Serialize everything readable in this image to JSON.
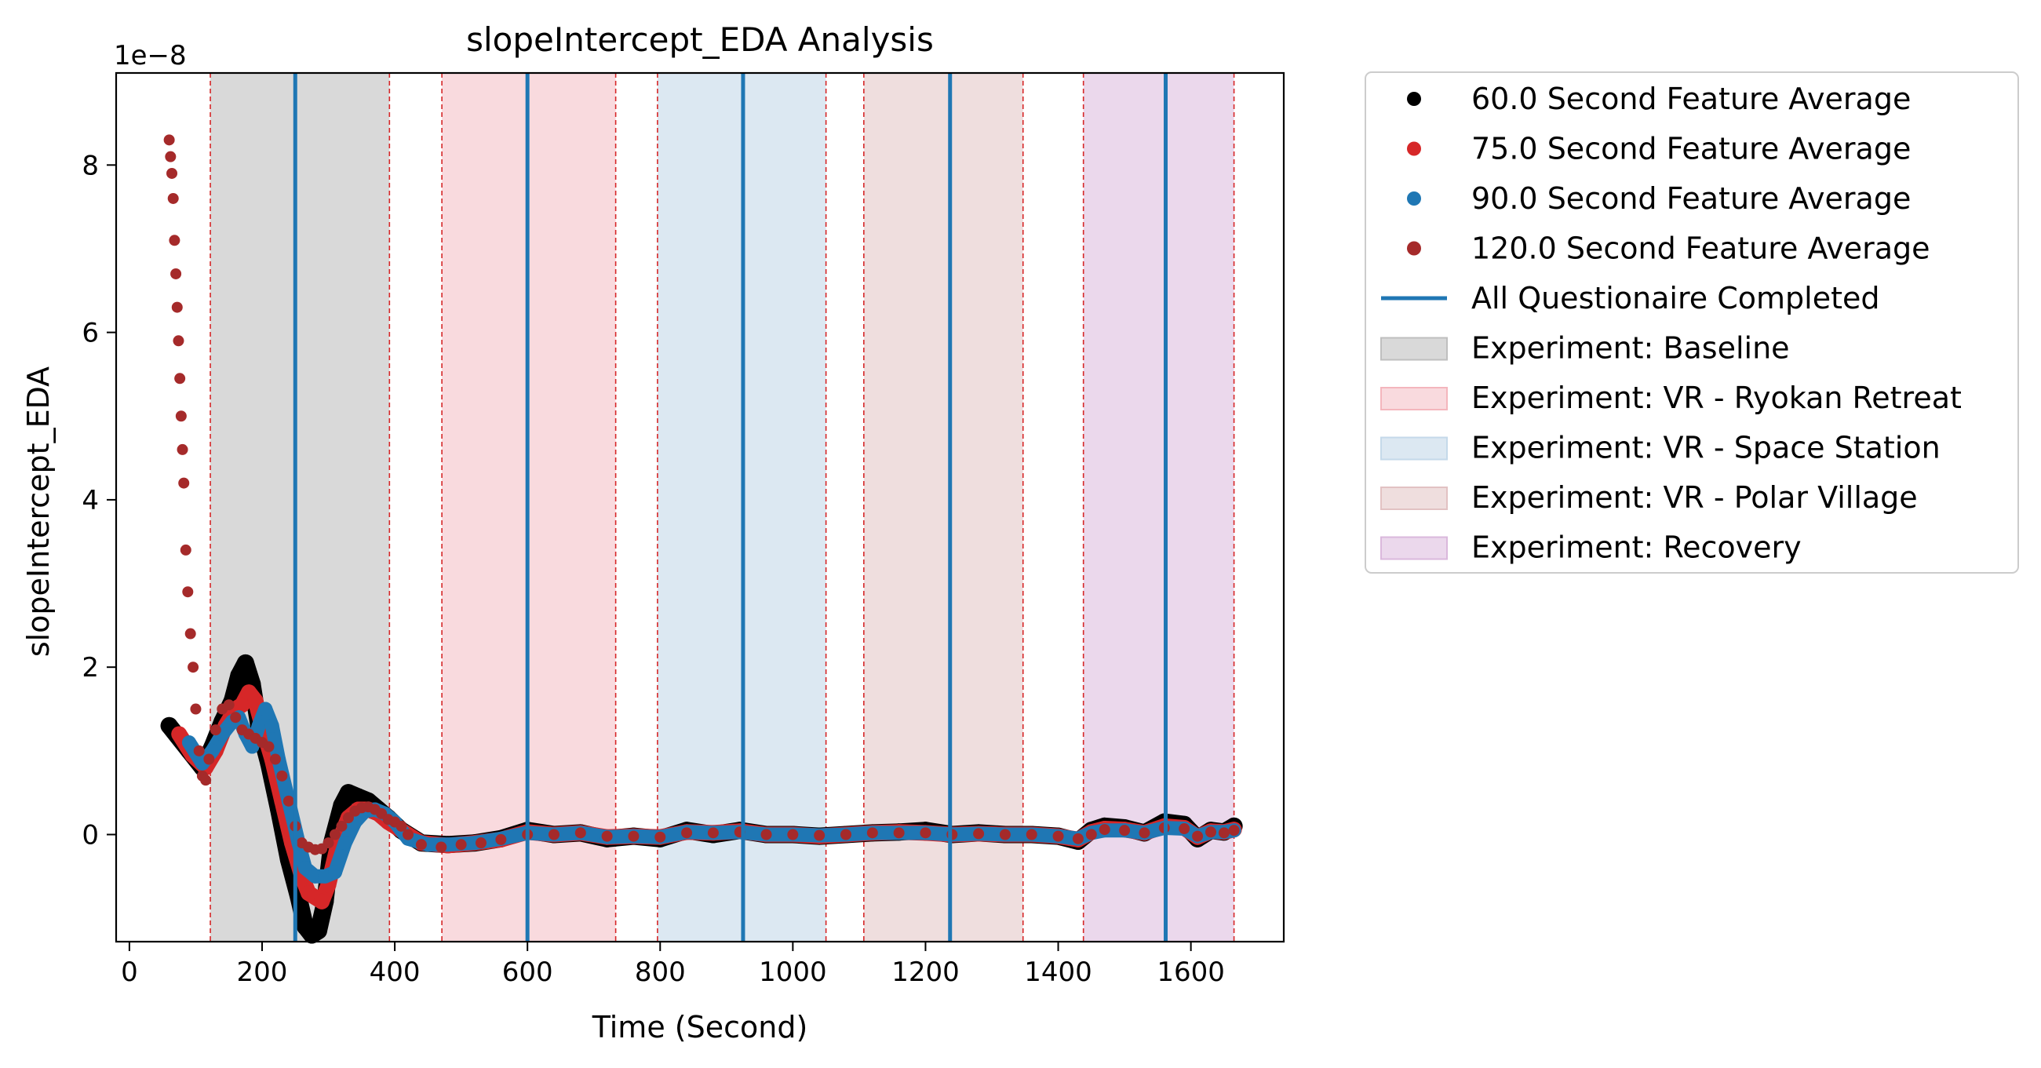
{
  "chart_data": {
    "type": "scatter",
    "title": "slopeIntercept_EDA Analysis",
    "xlabel": "Time (Second)",
    "ylabel": "slopeIntercept_EDA",
    "y_offset_label": "1e−8",
    "xlim": [
      -20,
      1740
    ],
    "ylim": [
      -1.28,
      9.1
    ],
    "x_ticks": [
      0,
      200,
      400,
      600,
      800,
      1000,
      1200,
      1400,
      1600
    ],
    "y_ticks": [
      0,
      2,
      4,
      6,
      8
    ],
    "grid": false,
    "legend_position": "outside-right",
    "legend_marker_labels": [
      "60.0 Second Feature Average",
      "75.0 Second Feature Average",
      "90.0 Second Feature Average",
      "120.0 Second Feature Average"
    ],
    "series": [
      {
        "name": "60.0 Second Feature Average",
        "color": "#000000",
        "window": 60,
        "x": [
          60,
          90,
          110,
          125,
          140,
          155,
          165,
          175,
          185,
          195,
          210,
          225,
          240,
          255,
          265,
          275,
          285,
          295,
          305,
          320,
          330,
          345,
          360,
          375,
          390,
          410,
          440,
          480,
          520,
          560,
          600,
          640,
          680,
          720,
          760,
          800,
          840,
          880,
          920,
          960,
          1000,
          1040,
          1080,
          1120,
          1160,
          1200,
          1240,
          1280,
          1320,
          1360,
          1400,
          1430,
          1450,
          1470,
          1500,
          1530,
          1560,
          1590,
          1610,
          1630,
          1650,
          1665
        ],
        "y": [
          1.3,
          1.0,
          0.8,
          1.05,
          1.35,
          1.6,
          1.9,
          2.05,
          1.8,
          1.3,
          0.85,
          0.3,
          -0.3,
          -0.75,
          -1.1,
          -1.2,
          -1.15,
          -0.8,
          -0.1,
          0.35,
          0.5,
          0.45,
          0.4,
          0.3,
          0.2,
          0.05,
          -0.1,
          -0.12,
          -0.1,
          -0.05,
          0.05,
          0.0,
          0.02,
          -0.05,
          -0.02,
          -0.05,
          0.05,
          0.0,
          0.05,
          0.0,
          0.0,
          -0.02,
          0.0,
          0.02,
          0.03,
          0.05,
          0.0,
          0.02,
          0.0,
          0.0,
          -0.02,
          -0.08,
          0.05,
          0.1,
          0.08,
          0.02,
          0.15,
          0.12,
          -0.05,
          0.05,
          0.03,
          0.1
        ]
      },
      {
        "name": "75.0 Second Feature Average",
        "color": "#d62728",
        "window": 75,
        "x": [
          75,
          95,
          115,
          130,
          145,
          160,
          170,
          180,
          190,
          200,
          215,
          230,
          245,
          260,
          270,
          280,
          290,
          300,
          315,
          330,
          345,
          360,
          375,
          390,
          410,
          440,
          480,
          520,
          560,
          600,
          640,
          680,
          720,
          760,
          800,
          840,
          880,
          920,
          960,
          1000,
          1040,
          1080,
          1120,
          1160,
          1200,
          1240,
          1280,
          1320,
          1360,
          1400,
          1430,
          1450,
          1470,
          1500,
          1530,
          1560,
          1590,
          1610,
          1630,
          1650,
          1665
        ],
        "y": [
          1.2,
          0.95,
          0.8,
          1.0,
          1.3,
          1.5,
          1.55,
          1.7,
          1.6,
          1.3,
          0.9,
          0.4,
          -0.1,
          -0.5,
          -0.7,
          -0.75,
          -0.8,
          -0.6,
          -0.1,
          0.2,
          0.3,
          0.3,
          0.25,
          0.15,
          0.05,
          -0.1,
          -0.13,
          -0.1,
          -0.06,
          0.03,
          0.0,
          0.02,
          -0.03,
          -0.02,
          -0.03,
          0.03,
          0.02,
          0.04,
          0.0,
          0.0,
          -0.02,
          0.0,
          0.02,
          0.03,
          0.02,
          0.0,
          0.01,
          0.0,
          0.0,
          -0.02,
          -0.06,
          0.03,
          0.07,
          0.06,
          0.02,
          0.1,
          0.08,
          -0.03,
          0.04,
          0.03,
          0.06
        ]
      },
      {
        "name": "90.0 Second Feature Average",
        "color": "#1f77b4",
        "window": 90,
        "x": [
          90,
          110,
          125,
          140,
          155,
          165,
          175,
          185,
          195,
          205,
          215,
          225,
          240,
          255,
          265,
          280,
          295,
          310,
          325,
          340,
          355,
          370,
          385,
          400,
          420,
          450,
          480,
          520,
          560,
          600,
          640,
          680,
          720,
          760,
          800,
          840,
          880,
          920,
          960,
          1000,
          1040,
          1080,
          1120,
          1160,
          1200,
          1240,
          1280,
          1320,
          1360,
          1400,
          1430,
          1450,
          1470,
          1500,
          1530,
          1560,
          1590,
          1610,
          1630,
          1650,
          1665
        ],
        "y": [
          1.1,
          0.85,
          1.0,
          1.2,
          1.35,
          1.4,
          1.2,
          1.05,
          1.3,
          1.5,
          1.3,
          0.9,
          0.4,
          -0.1,
          -0.4,
          -0.5,
          -0.5,
          -0.45,
          -0.1,
          0.15,
          0.28,
          0.3,
          0.25,
          0.15,
          -0.05,
          -0.12,
          -0.12,
          -0.1,
          -0.05,
          0.02,
          0.0,
          0.02,
          -0.03,
          -0.02,
          -0.03,
          0.03,
          0.02,
          0.03,
          0.0,
          0.0,
          -0.01,
          0.0,
          0.02,
          0.02,
          0.02,
          0.0,
          0.01,
          0.0,
          0.0,
          -0.02,
          -0.05,
          0.02,
          0.05,
          0.05,
          0.02,
          0.08,
          0.07,
          -0.02,
          0.03,
          0.03,
          0.05
        ]
      },
      {
        "name": "120.0 Second Feature Average",
        "color": "#a52a2a",
        "window": 120,
        "x": [
          60,
          62,
          64,
          66,
          68,
          70,
          72,
          74,
          76,
          78,
          80,
          82,
          85,
          88,
          92,
          96,
          100,
          105,
          110,
          115,
          120,
          130,
          140,
          150,
          160,
          170,
          180,
          190,
          200,
          210,
          220,
          230,
          240,
          250,
          260,
          270,
          280,
          290,
          300,
          310,
          320,
          330,
          340,
          350,
          360,
          370,
          380,
          390,
          400,
          410,
          420,
          440,
          470,
          500,
          530,
          560,
          600,
          640,
          680,
          720,
          760,
          800,
          840,
          880,
          920,
          960,
          1000,
          1040,
          1080,
          1120,
          1160,
          1200,
          1240,
          1280,
          1320,
          1360,
          1400,
          1430,
          1450,
          1470,
          1500,
          1530,
          1560,
          1590,
          1610,
          1630,
          1650,
          1665
        ],
        "y": [
          8.3,
          8.1,
          7.9,
          7.6,
          7.1,
          6.7,
          6.3,
          5.9,
          5.45,
          5.0,
          4.6,
          4.2,
          3.4,
          2.9,
          2.4,
          2.0,
          1.5,
          1.0,
          0.7,
          0.65,
          0.9,
          1.25,
          1.5,
          1.55,
          1.4,
          1.25,
          1.2,
          1.15,
          1.1,
          1.05,
          0.9,
          0.7,
          0.4,
          0.1,
          -0.1,
          -0.15,
          -0.18,
          -0.17,
          -0.1,
          0.0,
          0.1,
          0.2,
          0.28,
          0.32,
          0.33,
          0.3,
          0.25,
          0.18,
          0.15,
          0.1,
          0.0,
          -0.12,
          -0.15,
          -0.12,
          -0.1,
          -0.06,
          0.0,
          0.0,
          0.02,
          -0.02,
          -0.02,
          -0.03,
          0.02,
          0.02,
          0.03,
          0.0,
          0.0,
          -0.01,
          0.0,
          0.02,
          0.02,
          0.02,
          0.0,
          0.01,
          0.0,
          0.0,
          -0.02,
          -0.05,
          0.0,
          0.06,
          0.05,
          0.02,
          0.08,
          0.07,
          -0.02,
          0.03,
          0.02,
          0.05
        ]
      }
    ],
    "vlines": {
      "label": "All Questionaire Completed",
      "color": "#1f77b4",
      "x": [
        250,
        600,
        925,
        1237,
        1562
      ]
    },
    "phases": [
      {
        "label": "Experiment: Baseline",
        "start": 122,
        "end": 392,
        "color": "#bfbfbf",
        "opacity": 0.6
      },
      {
        "label": "Experiment: VR - Ryokan Retreat",
        "start": 471,
        "end": 733,
        "color": "#f4b6bd",
        "opacity": 0.5
      },
      {
        "label": "Experiment: VR - Space Station",
        "start": 796,
        "end": 1050,
        "color": "#c5d9ea",
        "opacity": 0.6
      },
      {
        "label": "Experiment: VR - Polar Village",
        "start": 1107,
        "end": 1347,
        "color": "#e2c2c3",
        "opacity": 0.55
      },
      {
        "label": "Experiment: Recovery",
        "start": 1438,
        "end": 1665,
        "color": "#dab8dc",
        "opacity": 0.55
      }
    ],
    "phase_boundary_color": "#d62728"
  }
}
